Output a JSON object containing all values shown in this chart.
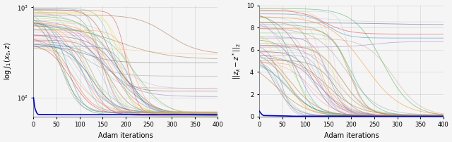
{
  "n_iterations": 401,
  "n_curves": 50,
  "x_max": 400,
  "left_plot": {
    "ylabel": "log $J_1(x_0, z)$",
    "xlabel": "Adam iterations",
    "yscale": "log",
    "ylim": [
      62,
      1050
    ],
    "yticks": [
      100,
      1000
    ],
    "xticks": [
      0,
      50,
      100,
      150,
      200,
      250,
      300,
      350,
      400
    ]
  },
  "right_plot": {
    "ylabel": "$||z_k - z^*||_2$",
    "xlabel": "Adam iterations",
    "ylim": [
      0,
      10
    ],
    "yticks": [
      0,
      2,
      4,
      6,
      8,
      10
    ],
    "xticks": [
      0,
      50,
      100,
      150,
      200,
      250,
      300,
      350,
      400
    ]
  },
  "colors": [
    "#1f77b4",
    "#ff7f0e",
    "#2ca02c",
    "#d62728",
    "#9467bd",
    "#8c564b",
    "#e377c2",
    "#7f7f7f",
    "#bcbd22",
    "#17becf",
    "#aec7e8",
    "#ffbb78",
    "#98df8a",
    "#ff9896",
    "#c5b0d5",
    "#c49c94",
    "#f7b6d2",
    "#c7c7c7",
    "#dbdb8d",
    "#9edae5",
    "#393b79",
    "#637939",
    "#8c6d31",
    "#843c39",
    "#7b4173",
    "#3182bd",
    "#e6550d",
    "#31a354",
    "#756bb1",
    "#636363",
    "#6baed6",
    "#fd8d3c",
    "#74c476",
    "#9e9ac8",
    "#969696",
    "#e41a1c",
    "#377eb8",
    "#4daf4a",
    "#984ea3",
    "#ff7f00",
    "#a65628",
    "#f781bf",
    "#999999",
    "#66c2a5",
    "#fc8d62",
    "#8da0cb",
    "#e78ac3",
    "#a6d854",
    "#ffd92f",
    "#e5c494"
  ],
  "alpha": 0.5,
  "linewidth": 0.6,
  "background_color": "#f5f5f5",
  "grid_color": "#aaaaaa",
  "blue_color": "#0000cc"
}
